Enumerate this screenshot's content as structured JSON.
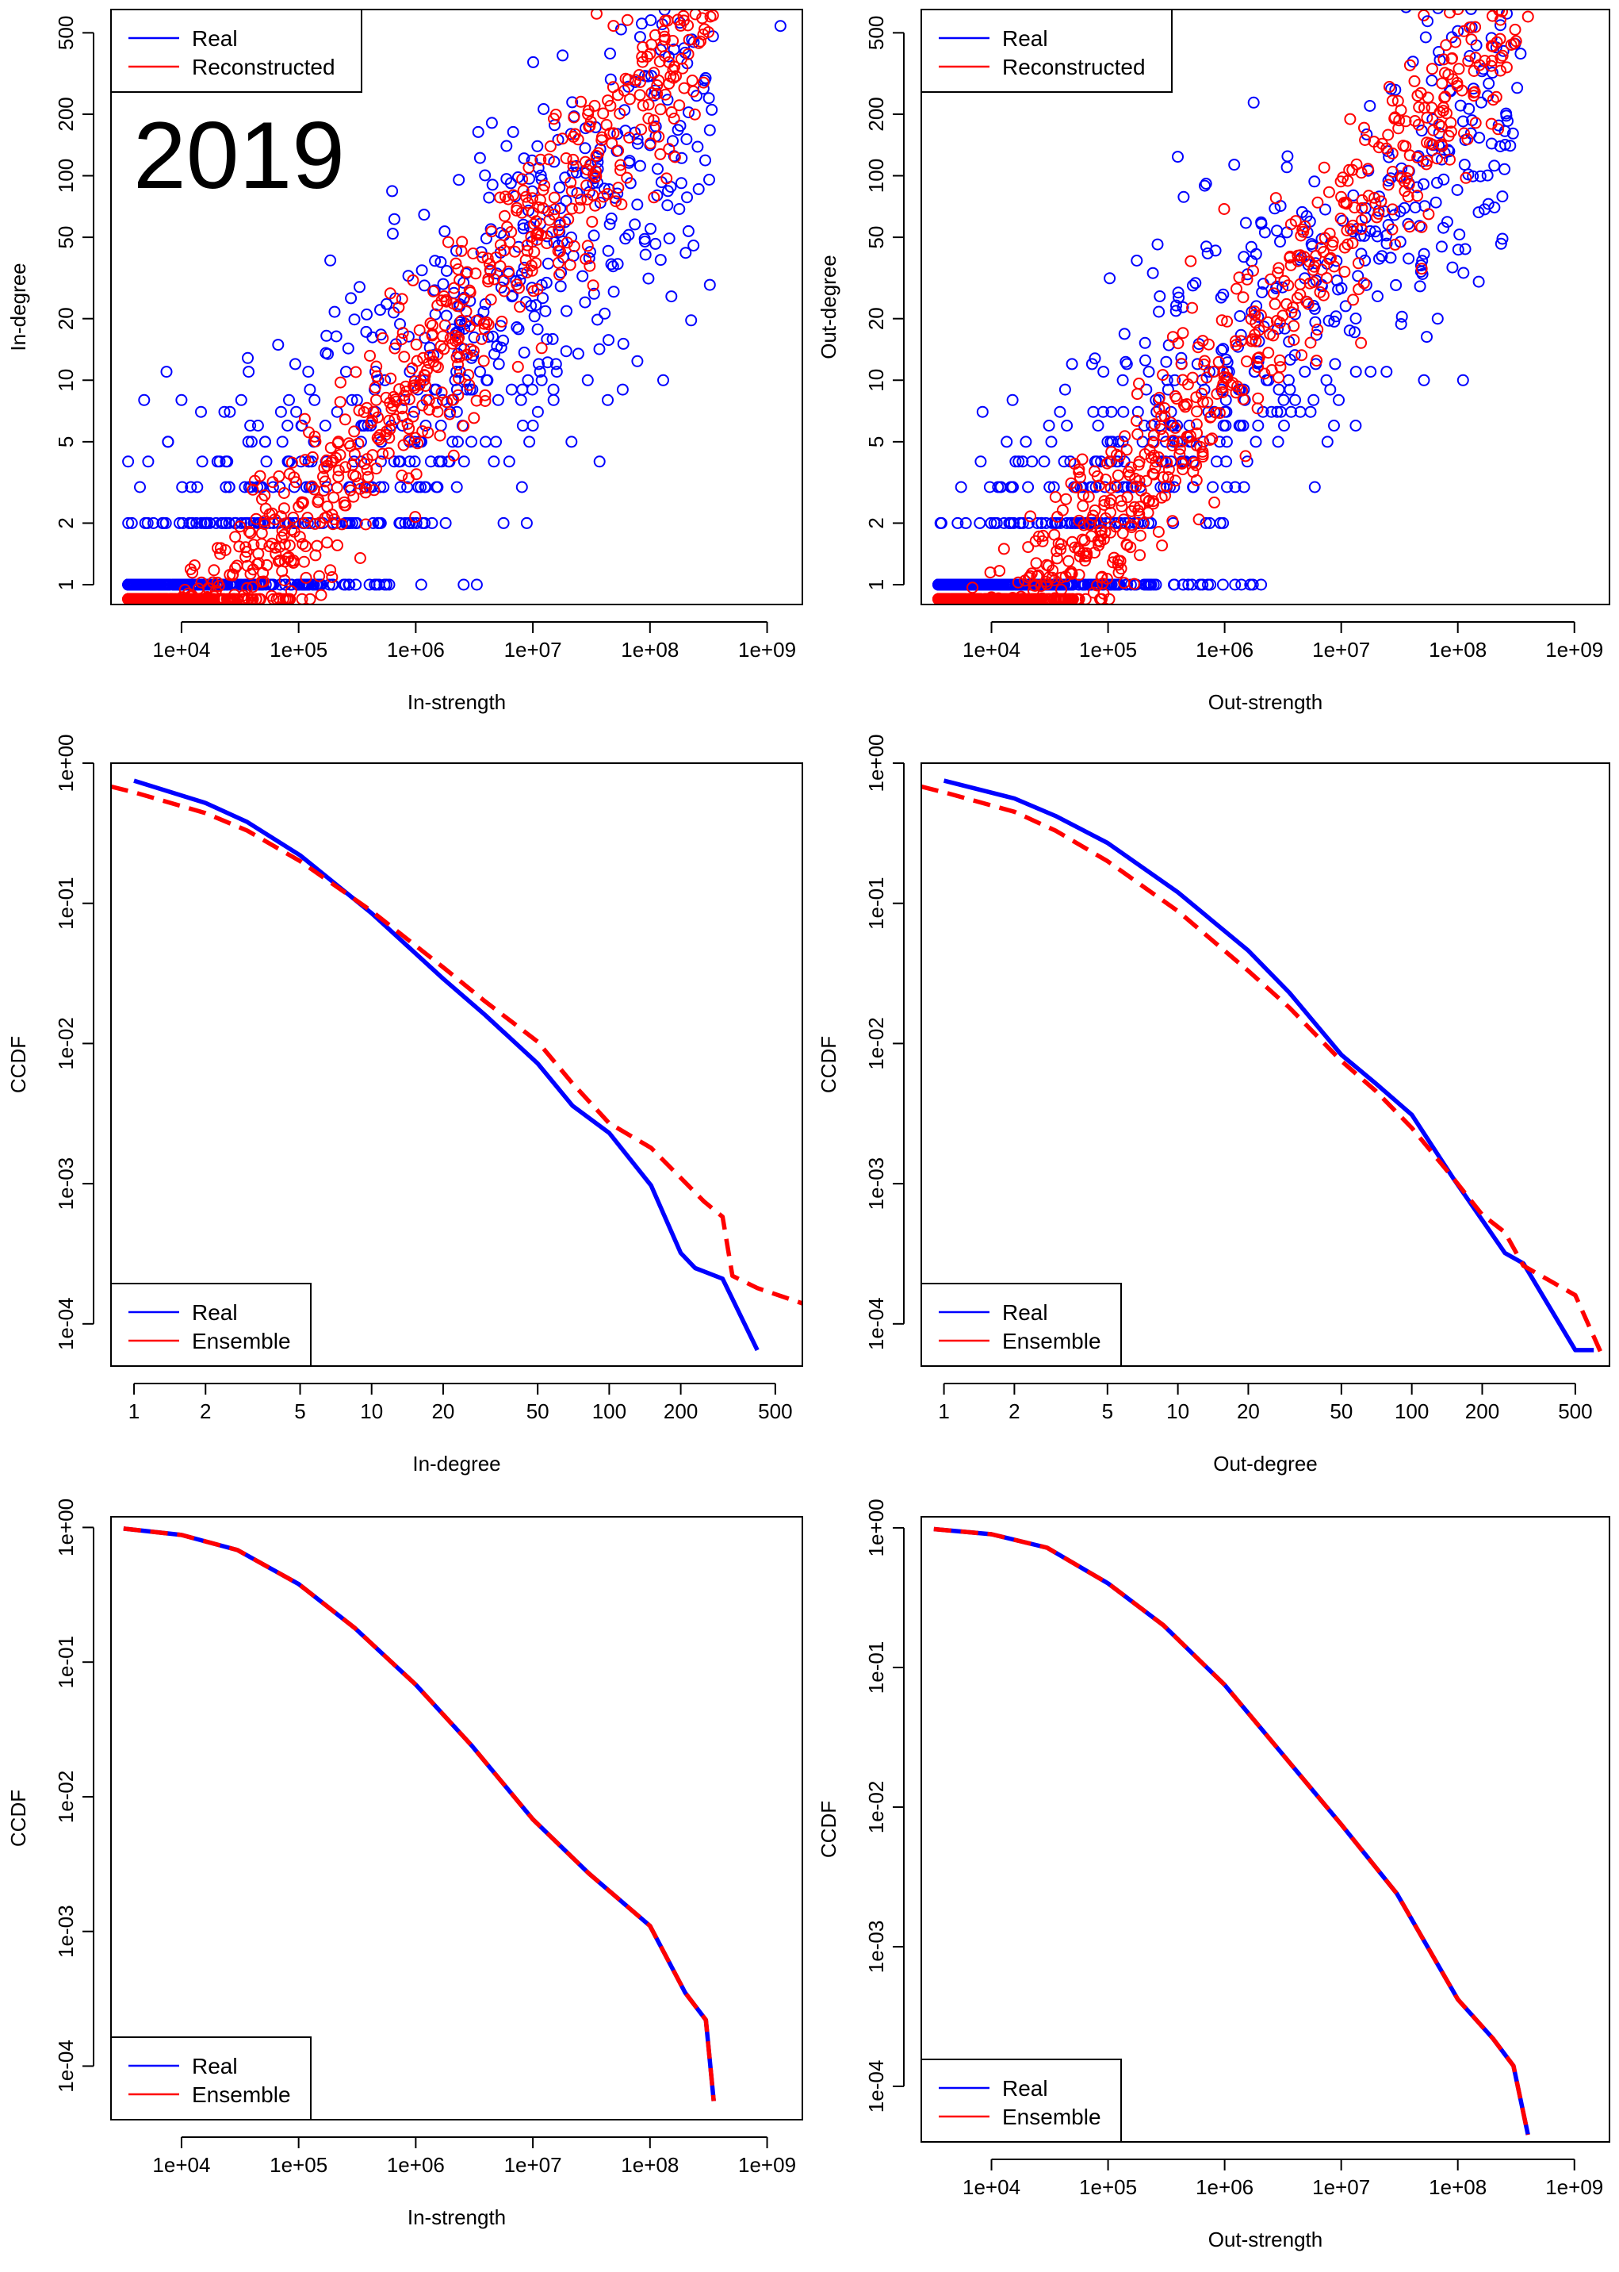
{
  "figure": {
    "year_label": "2019"
  },
  "colors": {
    "real": "#0000FF",
    "reconstructed": "#FF0000",
    "ensemble": "#FF0000"
  },
  "chart_data": [
    {
      "id": "p1",
      "type": "scatter",
      "xlabel": "In-strength",
      "ylabel": "In-degree",
      "xscale": "log",
      "yscale": "log",
      "xlim": [
        2500,
        2000000000
      ],
      "ylim": [
        0.8,
        650
      ],
      "xticks": [
        10000,
        100000,
        1000000,
        10000000,
        100000000,
        1000000000
      ],
      "xtick_labels": [
        "1e+04",
        "1e+05",
        "1e+06",
        "1e+07",
        "1e+08",
        "1e+09"
      ],
      "yticks": [
        1,
        2,
        5,
        10,
        20,
        50,
        100,
        200,
        500
      ],
      "ytick_labels": [
        "1",
        "2",
        "5",
        "10",
        "20",
        "50",
        "100",
        "200",
        "500"
      ],
      "legend": [
        "Real",
        "Reconstructed"
      ],
      "legend_position": "top-left",
      "annotation": "2019",
      "series_summary": {
        "Real": {
          "marker": "open-circle",
          "degree_per_strength_trend": "sqrt",
          "max_point": [
            1300000000,
            540
          ]
        },
        "Reconstructed": {
          "marker": "open-circle",
          "degree_per_strength_trend": "linear-ish",
          "max_point": [
            35000000,
            620
          ]
        }
      }
    },
    {
      "id": "p2",
      "type": "scatter",
      "xlabel": "Out-strength",
      "ylabel": "Out-degree",
      "xscale": "log",
      "yscale": "log",
      "xlim": [
        2500,
        2000000000
      ],
      "ylim": [
        0.8,
        650
      ],
      "xticks": [
        10000,
        100000,
        1000000,
        10000000,
        100000000,
        1000000000
      ],
      "xtick_labels": [
        "1e+04",
        "1e+05",
        "1e+06",
        "1e+07",
        "1e+08",
        "1e+09"
      ],
      "yticks": [
        1,
        2,
        5,
        10,
        20,
        50,
        100,
        200,
        500
      ],
      "ytick_labels": [
        "1",
        "2",
        "5",
        "10",
        "20",
        "50",
        "100",
        "200",
        "500"
      ],
      "legend": [
        "Real",
        "Reconstructed"
      ],
      "legend_position": "top-left",
      "series_summary": {
        "Real": {
          "marker": "open-circle",
          "max_point": [
            55000000,
            570
          ]
        },
        "Reconstructed": {
          "marker": "open-circle",
          "max_point": [
            400000000,
            600
          ]
        }
      }
    },
    {
      "id": "p3",
      "type": "line",
      "xlabel": "In-degree",
      "ylabel": "CCDF",
      "xscale": "log",
      "yscale": "log",
      "xlim": [
        0.8,
        650
      ],
      "ylim": [
        5e-05,
        1.0
      ],
      "xticks": [
        1,
        2,
        5,
        10,
        20,
        50,
        100,
        200,
        500
      ],
      "xtick_labels": [
        "1",
        "2",
        "5",
        "10",
        "20",
        "50",
        "100",
        "200",
        "500"
      ],
      "yticks": [
        1,
        0.1,
        0.01,
        0.001,
        0.0001
      ],
      "ytick_labels": [
        "1e+00",
        "1e-01",
        "1e-02",
        "1e-03",
        "1e-04"
      ],
      "legend": [
        "Real",
        "Ensemble"
      ],
      "legend_position": "bottom-left",
      "series": [
        {
          "name": "Real",
          "style": "solid",
          "color": "#0000FF",
          "x": [
            1,
            2,
            3,
            5,
            10,
            20,
            30,
            50,
            70,
            100,
            150,
            200,
            230,
            300,
            420
          ],
          "y": [
            0.75,
            0.52,
            0.38,
            0.22,
            0.085,
            0.029,
            0.016,
            0.0072,
            0.0036,
            0.0023,
            0.00097,
            0.00032,
            0.00025,
            0.00021,
            6.5e-05
          ]
        },
        {
          "name": "Ensemble",
          "style": "dashed",
          "color": "#FF0000",
          "x": [
            0.8,
            1,
            2,
            3,
            5,
            10,
            20,
            30,
            50,
            70,
            100,
            150,
            200,
            250,
            300,
            330,
            420,
            650
          ],
          "y": [
            0.68,
            0.62,
            0.44,
            0.33,
            0.2,
            0.088,
            0.035,
            0.02,
            0.0103,
            0.0052,
            0.0027,
            0.0018,
            0.0011,
            0.00075,
            0.00058,
            0.00022,
            0.00018,
            0.00014
          ]
        }
      ]
    },
    {
      "id": "p4",
      "type": "line",
      "xlabel": "Out-degree",
      "ylabel": "CCDF",
      "xscale": "log",
      "yscale": "log",
      "xlim": [
        0.8,
        700
      ],
      "ylim": [
        5e-05,
        1.0
      ],
      "xticks": [
        1,
        2,
        5,
        10,
        20,
        50,
        100,
        200,
        500
      ],
      "xtick_labels": [
        "1",
        "2",
        "5",
        "10",
        "20",
        "50",
        "100",
        "200",
        "500"
      ],
      "yticks": [
        1,
        0.1,
        0.01,
        0.001,
        0.0001
      ],
      "ytick_labels": [
        "1e+00",
        "1e-01",
        "1e-02",
        "1e-03",
        "1e-04"
      ],
      "legend": [
        "Real",
        "Ensemble"
      ],
      "legend_position": "bottom-left",
      "series": [
        {
          "name": "Real",
          "style": "solid",
          "color": "#0000FF",
          "x": [
            1,
            2,
            3,
            5,
            10,
            20,
            30,
            50,
            70,
            100,
            150,
            200,
            250,
            300,
            500,
            600
          ],
          "y": [
            0.75,
            0.56,
            0.42,
            0.27,
            0.12,
            0.046,
            0.023,
            0.0083,
            0.0052,
            0.0031,
            0.0011,
            0.00055,
            0.00032,
            0.00027,
            6.5e-05,
            6.5e-05
          ]
        },
        {
          "name": "Ensemble",
          "style": "dashed",
          "color": "#FF0000",
          "x": [
            0.8,
            1,
            2,
            3,
            5,
            10,
            20,
            30,
            50,
            70,
            100,
            150,
            200,
            250,
            300,
            500,
            650
          ],
          "y": [
            0.68,
            0.62,
            0.45,
            0.33,
            0.2,
            0.088,
            0.033,
            0.018,
            0.0075,
            0.0046,
            0.0025,
            0.0011,
            0.0006,
            0.00045,
            0.00026,
            0.00016,
            6e-05
          ]
        }
      ]
    },
    {
      "id": "p5",
      "type": "line",
      "xlabel": "In-strength",
      "ylabel": "CCDF",
      "xscale": "log",
      "yscale": "log",
      "xlim": [
        2500,
        2000000000
      ],
      "ylim": [
        4e-05,
        1.2
      ],
      "xticks": [
        10000,
        100000,
        1000000,
        10000000,
        100000000,
        1000000000
      ],
      "xtick_labels": [
        "1e+04",
        "1e+05",
        "1e+06",
        "1e+07",
        "1e+08",
        "1e+09"
      ],
      "yticks": [
        1,
        0.1,
        0.01,
        0.001,
        0.0001
      ],
      "ytick_labels": [
        "1e+00",
        "1e-01",
        "1e-02",
        "1e-03",
        "1e-04"
      ],
      "legend": [
        "Real",
        "Ensemble"
      ],
      "legend_position": "bottom-left",
      "series": [
        {
          "name": "Real",
          "style": "solid",
          "color": "#0000FF",
          "x": [
            3200,
            10000,
            30000,
            100000,
            300000,
            1000000,
            3000000,
            10000000,
            30000000,
            100000000,
            200000000,
            300000000,
            350000000
          ],
          "y": [
            0.98,
            0.88,
            0.68,
            0.38,
            0.18,
            0.068,
            0.024,
            0.0068,
            0.0027,
            0.0011,
            0.00035,
            0.00022,
            5.5e-05
          ]
        },
        {
          "name": "Ensemble",
          "style": "dashed",
          "color": "#FF0000",
          "x": [
            3200,
            10000,
            30000,
            100000,
            300000,
            1000000,
            3000000,
            10000000,
            30000000,
            100000000,
            200000000,
            300000000,
            350000000
          ],
          "y": [
            0.98,
            0.88,
            0.68,
            0.38,
            0.18,
            0.068,
            0.024,
            0.0068,
            0.0027,
            0.0011,
            0.00035,
            0.00022,
            5.5e-05
          ]
        }
      ]
    },
    {
      "id": "p6",
      "type": "line",
      "xlabel": "Out-strength",
      "ylabel": "CCDF",
      "xscale": "log",
      "yscale": "log",
      "xlim": [
        2500,
        2000000000
      ],
      "ylim": [
        4e-05,
        1.2
      ],
      "xticks": [
        10000,
        100000,
        1000000,
        10000000,
        100000000,
        1000000000
      ],
      "xtick_labels": [
        "1e+04",
        "1e+05",
        "1e+06",
        "1e+07",
        "1e+08",
        "1e+09"
      ],
      "yticks": [
        1,
        0.1,
        0.01,
        0.001,
        0.0001
      ],
      "ytick_labels": [
        "1e+00",
        "1e-01",
        "1e-02",
        "1e-03",
        "1e-04"
      ],
      "legend": [
        "Real",
        "Ensemble"
      ],
      "legend_position": "bottom-left",
      "series": [
        {
          "name": "Real",
          "style": "solid",
          "color": "#0000FF",
          "x": [
            3200,
            10000,
            30000,
            100000,
            300000,
            1000000,
            3000000,
            10000000,
            30000000,
            100000000,
            200000000,
            300000000,
            400000000
          ],
          "y": [
            0.98,
            0.9,
            0.72,
            0.4,
            0.2,
            0.075,
            0.025,
            0.0075,
            0.0024,
            0.00042,
            0.00022,
            0.00014,
            4.5e-05
          ]
        },
        {
          "name": "Ensemble",
          "style": "dashed",
          "color": "#FF0000",
          "x": [
            3200,
            10000,
            30000,
            100000,
            300000,
            1000000,
            3000000,
            10000000,
            30000000,
            100000000,
            200000000,
            300000000,
            400000000
          ],
          "y": [
            0.98,
            0.9,
            0.72,
            0.4,
            0.2,
            0.075,
            0.025,
            0.0075,
            0.0024,
            0.00042,
            0.00022,
            0.00014,
            4.5e-05
          ]
        }
      ]
    }
  ]
}
